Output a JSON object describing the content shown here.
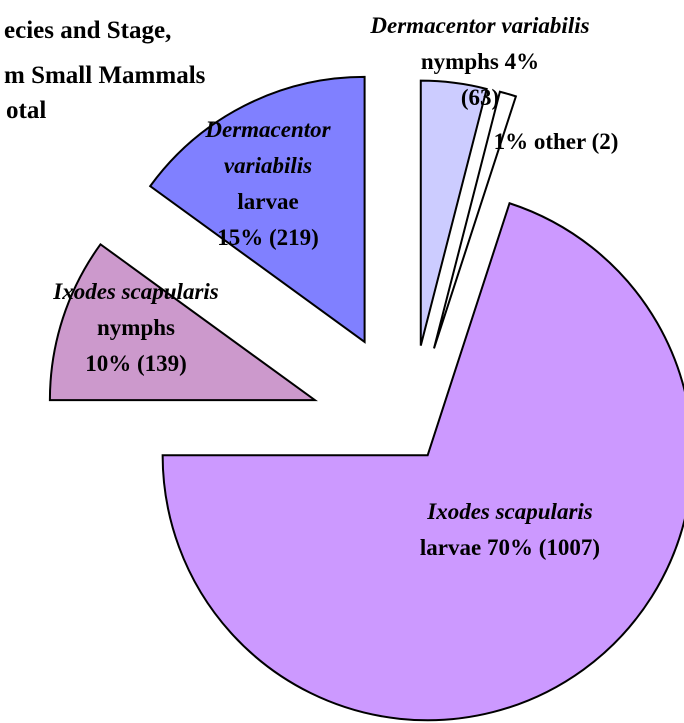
{
  "chart_data": {
    "type": "pie",
    "title_lines": [
      "ecies and Stage,",
      "m Small Mammals",
      "otal"
    ],
    "species": [
      "Ixodes scapularis",
      "Ixodes scapularis",
      "Dermacentor variabilis",
      "Dermacentor variabilis",
      null
    ],
    "categories": [
      "larvae",
      "nymphs",
      "larvae",
      "nymphs",
      "other"
    ],
    "values": [
      70,
      10,
      15,
      4,
      1
    ],
    "value_labels": [
      "70%",
      "10%",
      "15%",
      "4%",
      "1%"
    ],
    "count_labels": [
      "(1007)",
      "(139)",
      "(219)",
      "(63)",
      "(2)"
    ],
    "colors": [
      "#cc99ff",
      "#cc99cc",
      "#8080ff",
      "#ccccff",
      "#ffffff"
    ]
  }
}
